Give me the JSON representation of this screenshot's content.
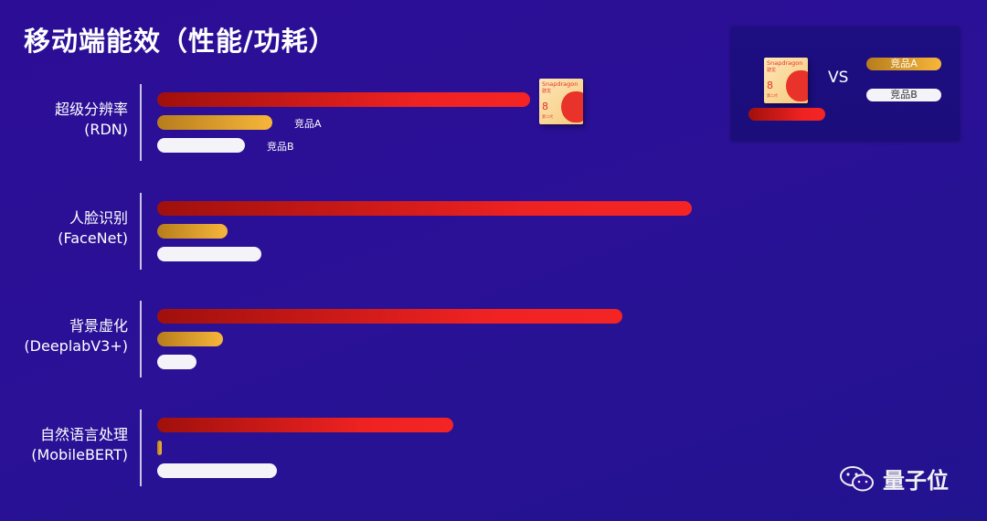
{
  "title": "移动端能效（性能/功耗）",
  "chart_data": {
    "type": "bar",
    "orientation": "horizontal",
    "title": "移动端能效（性能/功耗）",
    "categories": [
      "超级分辨率\n(RDN)",
      "人脸识别\n(FaceNet)",
      "背景虚化\n(DeeplabV3+)",
      "自然语言处理\n(MobileBERT)"
    ],
    "category_lines": [
      [
        "超级分辨率",
        "(RDN)"
      ],
      [
        "人脸识别",
        "(FaceNet)"
      ],
      [
        "背景虚化",
        "(DeeplabV3+)"
      ],
      [
        "自然语言处理",
        "(MobileBERT)"
      ]
    ],
    "series": [
      {
        "name": "Snapdragon 8 第二代",
        "color": "#ef2222",
        "values": [
          408,
          585,
          509,
          324
        ]
      },
      {
        "name": "竞品A",
        "color": "#f0a830",
        "values": [
          126,
          77,
          72,
          5
        ]
      },
      {
        "name": "竞品B",
        "color": "#f3f3f8",
        "values": [
          96,
          114,
          43,
          131
        ]
      }
    ],
    "value_axis": "none (relative, unlabeled)",
    "inline_labels": [
      "竞品A",
      "竞品B"
    ],
    "legend_placement": "top-right",
    "legend": {
      "vs": "VS",
      "a": "竞品A",
      "b": "竞品B"
    }
  },
  "chip": {
    "brand": "Snapdragon",
    "brand_cn": "骁龙",
    "model": "8",
    "gen": "第二代"
  },
  "watermark": "量子位"
}
